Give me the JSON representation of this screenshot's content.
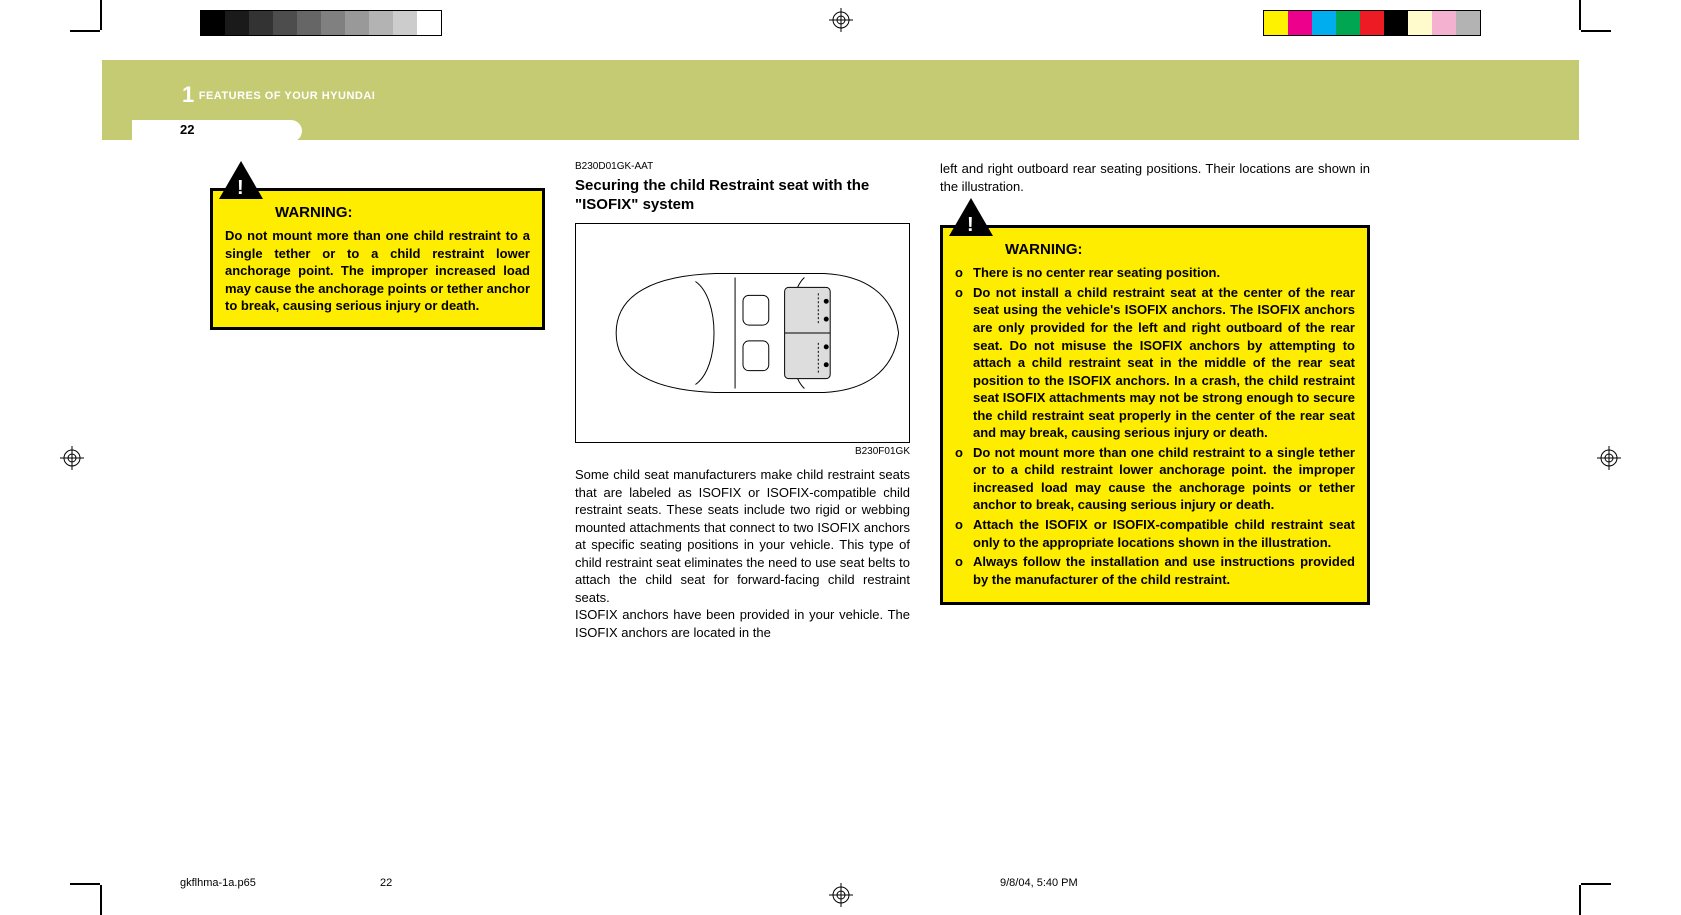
{
  "printer": {
    "gray_swatches": [
      "#000000",
      "#1a1a1a",
      "#333333",
      "#4d4d4d",
      "#666666",
      "#808080",
      "#999999",
      "#b3b3b3",
      "#cccccc",
      "#ffffff"
    ],
    "color_swatches": [
      "#fff200",
      "#ec008c",
      "#00aeef",
      "#00a651",
      "#ed1c24",
      "#000000",
      "#fffbcc",
      "#f4b2d0",
      "#b3b3b3"
    ],
    "footer_file": "gkflhma-1a.p65",
    "footer_page": "22",
    "footer_datetime": "9/8/04, 5:40 PM"
  },
  "header": {
    "chapter_number": "1",
    "chapter_title": "FEATURES OF YOUR HYUNDAI",
    "page_number": "22",
    "band_color": "#c4cb73"
  },
  "col1": {
    "warning_title": "WARNING:",
    "warning_body": "Do not mount more than one child restraint to a single tether or to a child restraint lower anchorage point. The improper increased load may cause the anchorage points or tether anchor to break, causing serious injury or death."
  },
  "col2": {
    "code": "B230D01GK-AAT",
    "title": "Securing the child Restraint seat with the \"ISOFIX\" system",
    "figure_code": "B230F01GK",
    "body": "Some child seat manufacturers make child restraint seats that are labeled as ISOFIX or ISOFIX-compatible child restraint seats. These seats include two rigid or webbing mounted attachments that connect to two ISOFIX anchors at specific seating positions in your vehicle. This type of child restraint seat eliminates the need to use seat belts to attach the child seat for forward-facing child restraint seats.\nISOFIX anchors have been provided in your vehicle. The ISOFIX anchors are located in the"
  },
  "col3": {
    "intro": "left and right outboard rear seating positions. Their locations are shown in the illustration.",
    "warning_title": "WARNING:",
    "warning_items": [
      "There is no center rear seating position.",
      "Do not install a child restraint seat at the center of the rear seat using the vehicle's ISOFIX anchors. The ISOFIX anchors are only provided for the left and right outboard of the rear seat. Do not misuse the ISOFIX anchors by attempting to attach a child restraint seat in the middle of the rear seat position to the ISOFIX anchors. In a crash, the child restraint seat ISOFIX attachments may not be strong enough to secure the child restraint seat properly in the center of the rear seat and may break, causing serious injury or death.",
      "Do not mount more than one child restraint to a single tether or to a child restraint lower anchorage point. the improper increased load may cause the anchorage points or tether anchor to break, causing serious injury or death.",
      "Attach the ISOFIX or ISOFIX-compatible child restraint seat only to the appropriate locations shown in the illustration.",
      "Always follow the installation and use instructions provided by the manufacturer of the child restraint."
    ]
  },
  "colors": {
    "warning_bg": "#ffed00",
    "warning_border": "#000000",
    "text": "#000000"
  }
}
